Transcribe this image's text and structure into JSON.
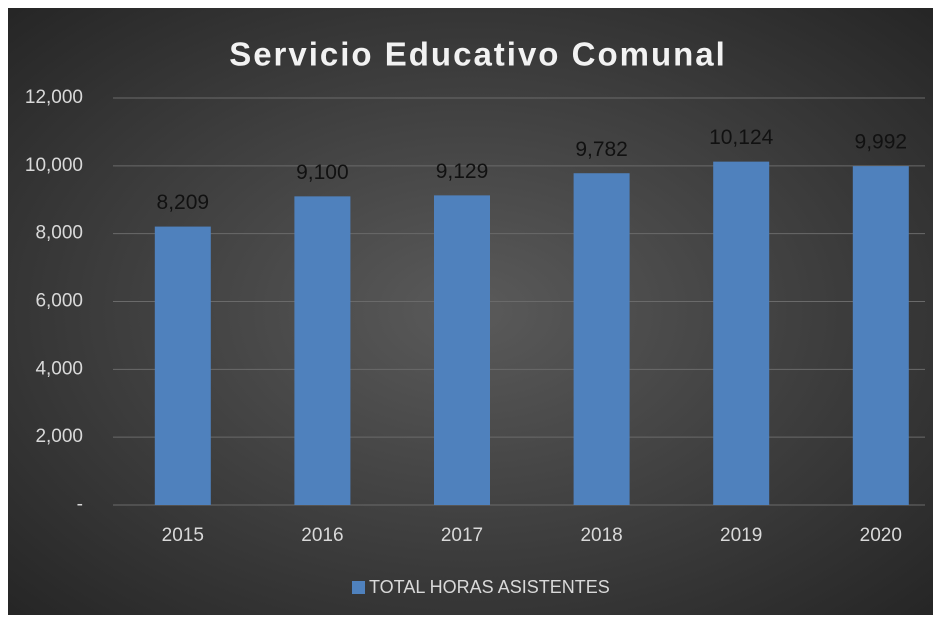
{
  "chart_data": {
    "type": "bar",
    "title": "Servicio Educativo Comunal",
    "categories": [
      "2015",
      "2016",
      "2017",
      "2018",
      "2019",
      "2020"
    ],
    "series": [
      {
        "name": "TOTAL HORAS ASISTENTES",
        "color": "#4f81bd",
        "values": [
          8209,
          9100,
          9129,
          9782,
          10124,
          9992
        ],
        "value_labels": [
          "8,209",
          "9,100",
          "9,129",
          "9,782",
          "10,124",
          "9,992"
        ]
      }
    ],
    "ylim": [
      0,
      12000
    ],
    "yticks": [
      {
        "value": 0,
        "label": "-"
      },
      {
        "value": 2000,
        "label": "2,000"
      },
      {
        "value": 4000,
        "label": "4,000"
      },
      {
        "value": 6000,
        "label": "6,000"
      },
      {
        "value": 8000,
        "label": "8,000"
      },
      {
        "value": 10000,
        "label": "10,000"
      },
      {
        "value": 12000,
        "label": "12,000"
      }
    ],
    "grid": true,
    "legend": "bottom"
  }
}
